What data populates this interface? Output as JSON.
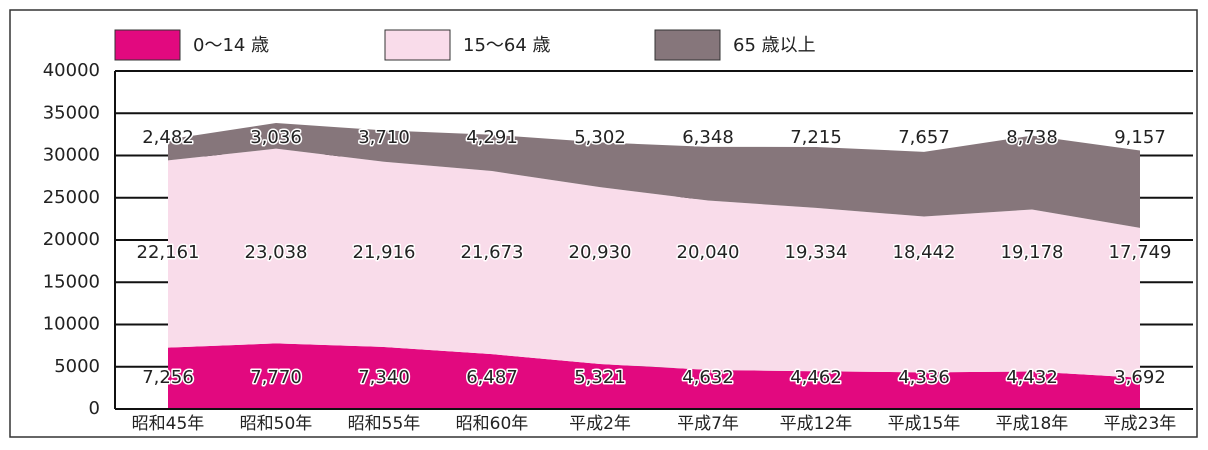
{
  "chart_data": {
    "type": "stacked_area",
    "categories": [
      "昭和45年",
      "昭和50年",
      "昭和55年",
      "昭和60年",
      "平成2年",
      "平成7年",
      "平成12年",
      "平成15年",
      "平成18年",
      "平成23年"
    ],
    "series": [
      {
        "name": "0〜14 歳",
        "color": "#e2097f",
        "values": [
          7256,
          7770,
          7340,
          6487,
          5321,
          4632,
          4462,
          4336,
          4432,
          3692
        ],
        "value_labels": [
          "7,256",
          "7,770",
          "7,340",
          "6,487",
          "5,321",
          "4,632",
          "4,462",
          "4,336",
          "4,432",
          "3,692"
        ]
      },
      {
        "name": "15〜64 歳",
        "color": "#f9dcea",
        "values": [
          22161,
          23038,
          21916,
          21673,
          20930,
          20040,
          19334,
          18442,
          19178,
          17749
        ],
        "value_labels": [
          "22,161",
          "23,038",
          "21,916",
          "21,673",
          "20,930",
          "20,040",
          "19,334",
          "18,442",
          "19,178",
          "17,749"
        ]
      },
      {
        "name": "65 歳以上",
        "color": "#86767b",
        "values": [
          2482,
          3036,
          3710,
          4291,
          5302,
          6348,
          7215,
          7657,
          8738,
          9157
        ],
        "value_labels": [
          "2,482",
          "3,036",
          "3,710",
          "4,291",
          "5,302",
          "6,348",
          "7,215",
          "7,657",
          "8,738",
          "9,157"
        ]
      }
    ],
    "ylim": [
      0,
      40000
    ],
    "yticks": [
      0,
      5000,
      10000,
      15000,
      20000,
      25000,
      30000,
      35000,
      40000
    ],
    "grid": true
  }
}
